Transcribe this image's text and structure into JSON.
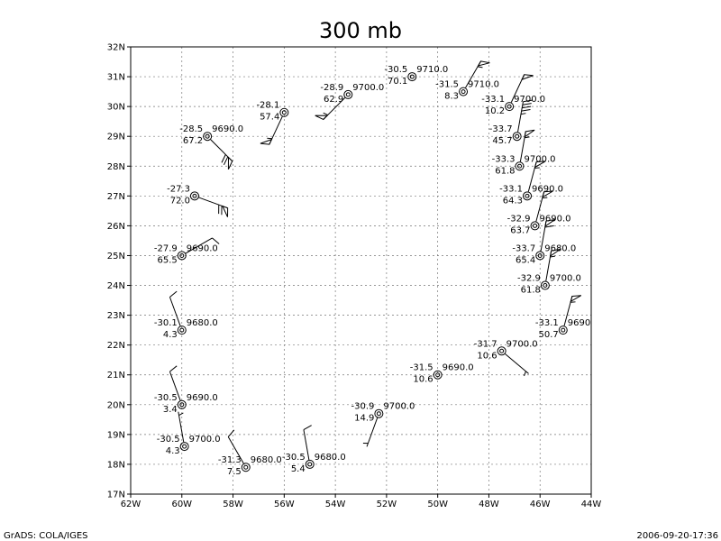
{
  "title": "300 mb",
  "footer": {
    "left": "GrADS: COLA/IGES",
    "right": "2006-09-20-17:36"
  },
  "map": {
    "lon_range": [
      -62,
      -44
    ],
    "lat_range": [
      17,
      32
    ],
    "x_ticks": [
      {
        "v": -62,
        "label": "62W"
      },
      {
        "v": -60,
        "label": "60W"
      },
      {
        "v": -58,
        "label": "58W"
      },
      {
        "v": -56,
        "label": "56W"
      },
      {
        "v": -54,
        "label": "54W"
      },
      {
        "v": -52,
        "label": "52W"
      },
      {
        "v": -50,
        "label": "50W"
      },
      {
        "v": -48,
        "label": "48W"
      },
      {
        "v": -46,
        "label": "46W"
      },
      {
        "v": -44,
        "label": "44W"
      }
    ],
    "y_ticks": [
      {
        "v": 17,
        "label": "17N"
      },
      {
        "v": 18,
        "label": "18N"
      },
      {
        "v": 19,
        "label": "19N"
      },
      {
        "v": 20,
        "label": "20N"
      },
      {
        "v": 21,
        "label": "21N"
      },
      {
        "v": 22,
        "label": "22N"
      },
      {
        "v": 23,
        "label": "23N"
      },
      {
        "v": 24,
        "label": "24N"
      },
      {
        "v": 25,
        "label": "25N"
      },
      {
        "v": 26,
        "label": "26N"
      },
      {
        "v": 27,
        "label": "27N"
      },
      {
        "v": 28,
        "label": "28N"
      },
      {
        "v": 29,
        "label": "29N"
      },
      {
        "v": 30,
        "label": "30N"
      },
      {
        "v": 31,
        "label": "31N"
      },
      {
        "v": 32,
        "label": "32N"
      }
    ],
    "grid": true
  },
  "stations": [
    {
      "lon": -57.5,
      "lat": 17.9,
      "temp": "-31.3",
      "height": "9680.0",
      "dew": "7.5",
      "wind_dir": 330,
      "wind_speed": 10
    },
    {
      "lon": -55.0,
      "lat": 18.0,
      "temp": "-30.5",
      "height": "9680.0",
      "dew": "5.4",
      "wind_dir": 350,
      "wind_speed": 10
    },
    {
      "lon": -59.9,
      "lat": 18.6,
      "temp": "-30.5",
      "height": "9700.0",
      "dew": "4.3",
      "wind_dir": 350,
      "wind_speed": 5
    },
    {
      "lon": -60.0,
      "lat": 20.0,
      "temp": "-30.5",
      "height": "9690.0",
      "dew": "3.4",
      "wind_dir": 340,
      "wind_speed": 10
    },
    {
      "lon": -52.3,
      "lat": 19.7,
      "temp": "-30.9",
      "height": "9700.0",
      "dew": "14.9",
      "wind_dir": 200,
      "wind_speed": 5
    },
    {
      "lon": -50.0,
      "lat": 21.0,
      "temp": "-31.5",
      "height": "9690.0",
      "dew": "10.6",
      "wind_dir": 0,
      "wind_speed": 0
    },
    {
      "lon": -47.5,
      "lat": 21.8,
      "temp": "-31.7",
      "height": "9700.0",
      "dew": "10.6",
      "wind_dir": 130,
      "wind_speed": 5
    },
    {
      "lon": -45.1,
      "lat": 22.5,
      "temp": "-33.1",
      "height": "9690",
      "dew": "50.7",
      "wind_dir": 15,
      "wind_speed": 55
    },
    {
      "lon": -60.0,
      "lat": 22.5,
      "temp": "-30.1",
      "height": "9680.0",
      "dew": "4.3",
      "wind_dir": 340,
      "wind_speed": 10
    },
    {
      "lon": -45.8,
      "lat": 24.0,
      "temp": "-32.9",
      "height": "9700.0",
      "dew": "61.8",
      "wind_dir": 10,
      "wind_speed": 55
    },
    {
      "lon": -46.0,
      "lat": 25.0,
      "temp": "-33.7",
      "height": "9680.0",
      "dew": "65.4",
      "wind_dir": 10,
      "wind_speed": 60
    },
    {
      "lon": -60.0,
      "lat": 25.0,
      "temp": "-27.9",
      "height": "9690.0",
      "dew": "65.5",
      "wind_dir": 60,
      "wind_speed": 10
    },
    {
      "lon": -46.2,
      "lat": 26.0,
      "temp": "-32.9",
      "height": "9690.0",
      "dew": "63.7",
      "wind_dir": 15,
      "wind_speed": 55
    },
    {
      "lon": -46.5,
      "lat": 27.0,
      "temp": "-33.1",
      "height": "9690.0",
      "dew": "64.3",
      "wind_dir": 15,
      "wind_speed": 55
    },
    {
      "lon": -59.5,
      "lat": 27.0,
      "temp": "-27.3",
      "height": "",
      "dew": "72.0",
      "wind_dir": 110,
      "wind_speed": 70
    },
    {
      "lon": -46.8,
      "lat": 28.0,
      "temp": "-33.3",
      "height": "9700.0",
      "dew": "61.8",
      "wind_dir": 10,
      "wind_speed": 55
    },
    {
      "lon": -46.9,
      "lat": 29.0,
      "temp": "-33.7",
      "height": "",
      "dew": "45.7",
      "wind_dir": 10,
      "wind_speed": 45
    },
    {
      "lon": -59.0,
      "lat": 29.0,
      "temp": "-28.5",
      "height": "9690.0",
      "dew": "67.2",
      "wind_dir": 135,
      "wind_speed": 70
    },
    {
      "lon": -56.0,
      "lat": 29.8,
      "temp": "-28.1",
      "height": "",
      "dew": "57.4",
      "wind_dir": 205,
      "wind_speed": 55
    },
    {
      "lon": -53.5,
      "lat": 30.4,
      "temp": "-28.9",
      "height": "9700.0",
      "dew": "62.9",
      "wind_dir": 225,
      "wind_speed": 55
    },
    {
      "lon": -51.0,
      "lat": 31.0,
      "temp": "-30.5",
      "height": "9710.0",
      "dew": "70.1",
      "wind_dir": 0,
      "wind_speed": 0
    },
    {
      "lon": -49.0,
      "lat": 30.5,
      "temp": "-31.5",
      "height": "9710.0",
      "dew": "8.3",
      "wind_dir": 30,
      "wind_speed": 55
    },
    {
      "lon": -47.2,
      "lat": 30.0,
      "temp": "-33.1",
      "height": "9700.0",
      "dew": "10.2",
      "wind_dir": 25,
      "wind_speed": 50
    }
  ]
}
